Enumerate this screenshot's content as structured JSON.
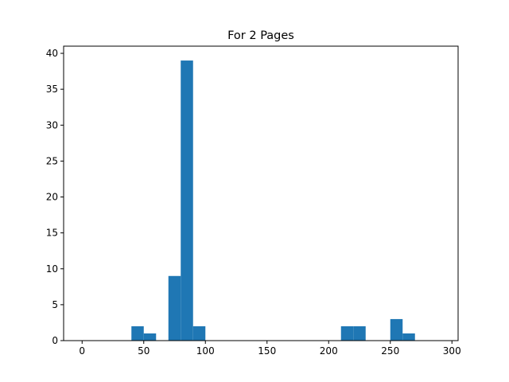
{
  "chart_data": {
    "type": "bar",
    "title": "For 2 Pages",
    "xlabel": "",
    "ylabel": "",
    "xlim": [
      -15,
      305
    ],
    "ylim": [
      0,
      41
    ],
    "xticks": [
      0,
      50,
      100,
      150,
      200,
      250,
      300
    ],
    "yticks": [
      0,
      5,
      10,
      15,
      20,
      25,
      30,
      35,
      40
    ],
    "grid": false,
    "legend": "none",
    "bar_color": "#1f77b4",
    "bins": [
      {
        "start": 40,
        "end": 50,
        "count": 2
      },
      {
        "start": 50,
        "end": 60,
        "count": 1
      },
      {
        "start": 70,
        "end": 80,
        "count": 9
      },
      {
        "start": 80,
        "end": 90,
        "count": 39
      },
      {
        "start": 90,
        "end": 100,
        "count": 2
      },
      {
        "start": 210,
        "end": 220,
        "count": 2
      },
      {
        "start": 220,
        "end": 230,
        "count": 2
      },
      {
        "start": 250,
        "end": 260,
        "count": 3
      },
      {
        "start": 260,
        "end": 270,
        "count": 1
      }
    ]
  }
}
